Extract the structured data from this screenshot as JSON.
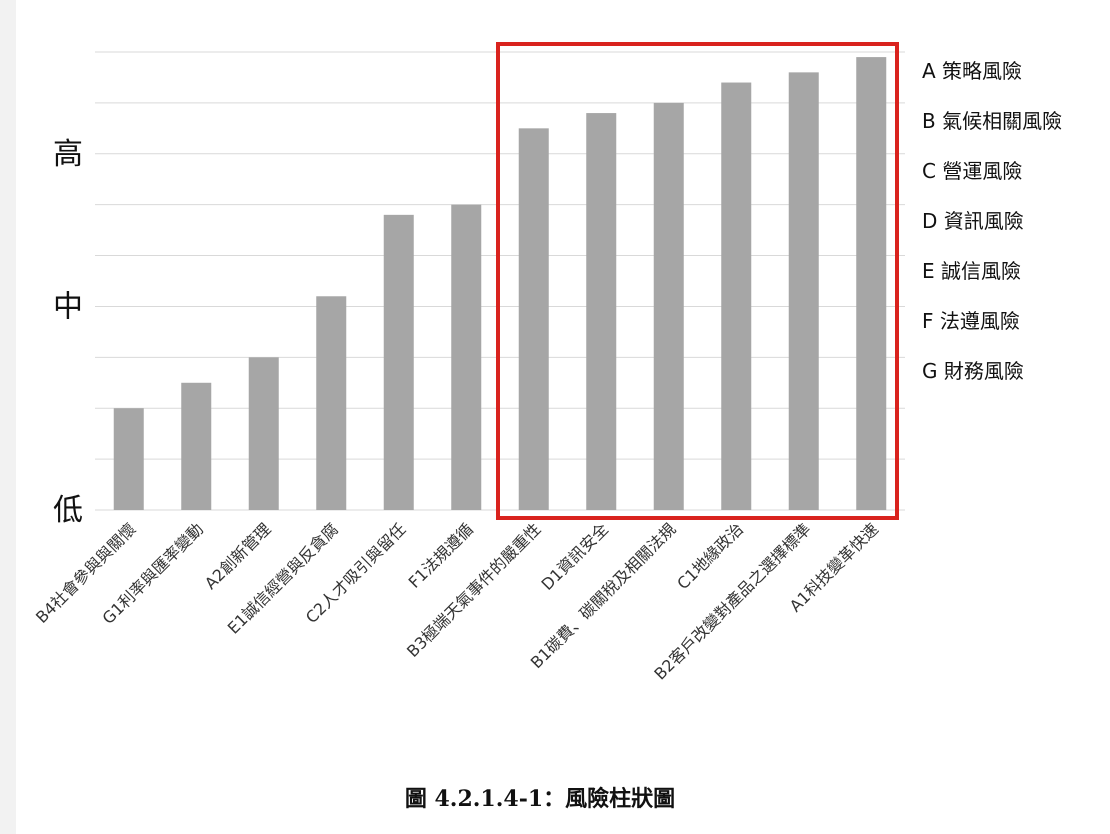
{
  "chart_data": {
    "type": "bar",
    "categories": [
      "B4社會參與與關懷",
      "G1利率與匯率變動",
      "A2創新管理",
      "E1誠信經營與反貪腐",
      "C2人才吸引與留任",
      "F1法規遵循",
      "B3極端天氣事件的嚴重性",
      "D1資訊安全",
      "B1碳費、碳關稅及相關法規",
      "C1地緣政治",
      "B2客戶改變對產品之選擇標準",
      "A1科技變革快速"
    ],
    "values": [
      20,
      25,
      30,
      42,
      58,
      60,
      75,
      78,
      80,
      84,
      86,
      89
    ],
    "ylim": [
      0,
      90
    ],
    "yticks": [
      {
        "label": "低",
        "value": 0
      },
      {
        "label": "中",
        "value": 40
      },
      {
        "label": "高",
        "value": 70
      }
    ],
    "grid": true,
    "bar_color": "#a6a6a6",
    "highlight": {
      "from_index": 6,
      "to_index": 11,
      "color": "#d9231e"
    },
    "legend_position": "right",
    "legend": [
      {
        "key": "A",
        "label": "策略風險"
      },
      {
        "key": "B",
        "label": "氣候相關風險"
      },
      {
        "key": "C",
        "label": "營運風險"
      },
      {
        "key": "D",
        "label": "資訊風險"
      },
      {
        "key": "E",
        "label": "誠信風險"
      },
      {
        "key": "F",
        "label": "法遵風險"
      },
      {
        "key": "G",
        "label": "財務風險"
      }
    ],
    "caption": "圖 4.2.1.4-1：風險柱狀圖"
  }
}
